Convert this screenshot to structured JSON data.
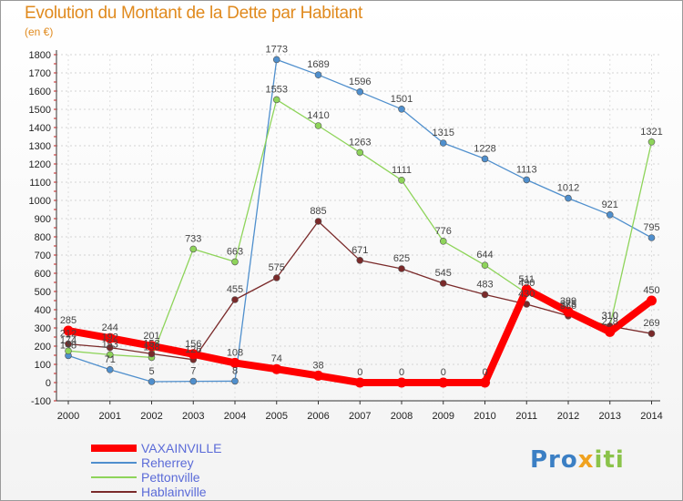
{
  "title": "Evolution du Montant de la Dette par Habitant",
  "unit_label": "(en €)",
  "logo": {
    "part1": "Pro",
    "part2": "x",
    "part3": "iti"
  },
  "colors": {
    "VAXAINVILLE": "#ff0000",
    "Reherrey": "#4f8fcd",
    "Pettonville": "#8ed45a",
    "Hablainville": "#7a2a2a",
    "title": "#e08a1e",
    "legend_text": "#5b6bd8"
  },
  "chart_data": {
    "type": "line",
    "title": "Evolution du Montant de la Dette par Habitant",
    "ylabel": "(en €)",
    "xlabel": "",
    "x": [
      "2000",
      "2001",
      "2002",
      "2003",
      "2004",
      "2005",
      "2006",
      "2007",
      "2008",
      "2009",
      "2010",
      "2011",
      "2012",
      "2013",
      "2014"
    ],
    "ylim": [
      -100,
      1800
    ],
    "yticks": [
      -100,
      0,
      100,
      200,
      300,
      400,
      500,
      600,
      700,
      800,
      900,
      1000,
      1100,
      1200,
      1300,
      1400,
      1500,
      1600,
      1700,
      1800
    ],
    "grid": true,
    "legend_position": "bottom-left",
    "series": [
      {
        "name": "VAXAINVILLE",
        "values": [
          285,
          244,
          201,
          156,
          108,
          74,
          38,
          0,
          0,
          0,
          0,
          511,
          389,
          278,
          450
        ]
      },
      {
        "name": "Reherrey",
        "values": [
          148,
          71,
          5,
          7,
          8,
          1773,
          1689,
          1596,
          1501,
          1315,
          1228,
          1113,
          1012,
          921,
          795
        ]
      },
      {
        "name": "Pettonville",
        "values": [
          174,
          153,
          138,
          733,
          663,
          1553,
          1410,
          1263,
          1111,
          776,
          644,
          490,
          375,
          310,
          1321
        ]
      },
      {
        "name": "Hablainville",
        "values": [
          212,
          192,
          158,
          126,
          455,
          575,
          885,
          671,
          625,
          545,
          483,
          430,
          366,
          310,
          269
        ]
      }
    ]
  },
  "labels": {
    "VAXAINVILLE": [
      "285",
      "244",
      "201",
      "156",
      "108",
      "74",
      "38",
      "0",
      "0",
      "0",
      "0",
      "511",
      "389",
      "278",
      "450"
    ],
    "Reherrey": [
      "148",
      "71",
      "5",
      "7",
      "8",
      "1773",
      "1689",
      "1596",
      "1501",
      "1315",
      "1228",
      "1113",
      "1012",
      "921",
      "795"
    ],
    "Pettonville": [
      "174",
      "153",
      "138",
      "733",
      "663",
      "1553",
      "1410",
      "1263",
      "1111",
      "776",
      "644",
      "490",
      "375",
      "310",
      "1321"
    ],
    "Hablainville": [
      "212",
      "192",
      "158",
      "126",
      "455",
      "575",
      "885",
      "671",
      "625",
      "545",
      "483",
      "430",
      "366",
      "310",
      "269"
    ]
  }
}
